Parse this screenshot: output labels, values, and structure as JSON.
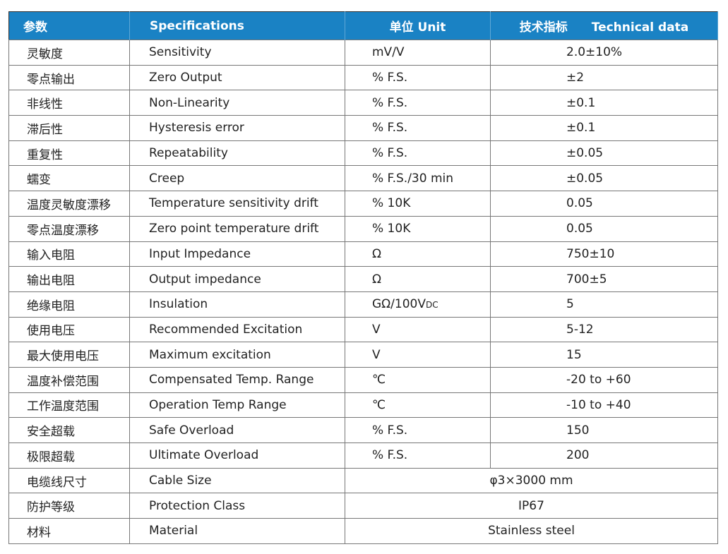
{
  "header": {
    "param": "参数",
    "spec": "Specifications",
    "unit": "单位 Unit",
    "tech_cn": "技术指标",
    "tech_en": "Technical data"
  },
  "colors": {
    "header_bg": "#1a82c4"
  },
  "rows": [
    {
      "cn": "灵敏度",
      "en": "Sensitivity",
      "unit": "mV/V",
      "value": "2.0±10%"
    },
    {
      "cn": "零点输出",
      "en": "Zero Output",
      "unit": "% F.S.",
      "value": "±2"
    },
    {
      "cn": "非线性",
      "en": "Non-Linearity",
      "unit": "% F.S.",
      "value": "±0.1"
    },
    {
      "cn": "滞后性",
      "en": "Hysteresis error",
      "unit": "% F.S.",
      "value": "±0.1"
    },
    {
      "cn": "重复性",
      "en": "Repeatability",
      "unit": "% F.S.",
      "value": "±0.05"
    },
    {
      "cn": "蠕变",
      "en": "Creep",
      "unit": "% F.S./30 min",
      "value": "±0.05"
    },
    {
      "cn": "温度灵敏度漂移",
      "en": "Temperature sensitivity drift",
      "unit": "% 10K",
      "value": "0.05"
    },
    {
      "cn": "零点温度漂移",
      "en": "Zero point temperature drift",
      "unit": "% 10K",
      "value": "0.05"
    },
    {
      "cn": "输入电阻",
      "en": "Input Impedance",
      "unit": "Ω",
      "value": "750±10"
    },
    {
      "cn": "输出电阻",
      "en": "Output impedance",
      "unit": "Ω",
      "value": "700±5"
    },
    {
      "cn": "绝缘电阻",
      "en": "Insulation",
      "unit": "GΩ/100V",
      "unit_sub": "DC",
      "value": "5"
    },
    {
      "cn": "使用电压",
      "en": "Recommended Excitation",
      "unit": "V",
      "value": "5-12"
    },
    {
      "cn": "最大使用电压",
      "en": "Maximum excitation",
      "unit": "V",
      "value": "15"
    },
    {
      "cn": "温度补偿范围",
      "en": "Compensated Temp. Range",
      "unit": "℃",
      "value": "-20 to +60"
    },
    {
      "cn": "工作温度范围",
      "en": "Operation Temp Range",
      "unit": "℃",
      "value": "-10 to +40"
    },
    {
      "cn": "安全超载",
      "en": "Safe Overload",
      "unit": "% F.S.",
      "value": "150"
    },
    {
      "cn": "极限超载",
      "en": "Ultimate Overload",
      "unit": "% F.S.",
      "value": "200"
    },
    {
      "cn": "电缆线尺寸",
      "en": "Cable Size",
      "value": "φ3×3000 mm",
      "merged": true
    },
    {
      "cn": "防护等级",
      "en": "Protection Class",
      "value": "IP67",
      "merged": true
    },
    {
      "cn": "材料",
      "en": "Material",
      "value": "Stainless steel",
      "merged": true
    }
  ]
}
